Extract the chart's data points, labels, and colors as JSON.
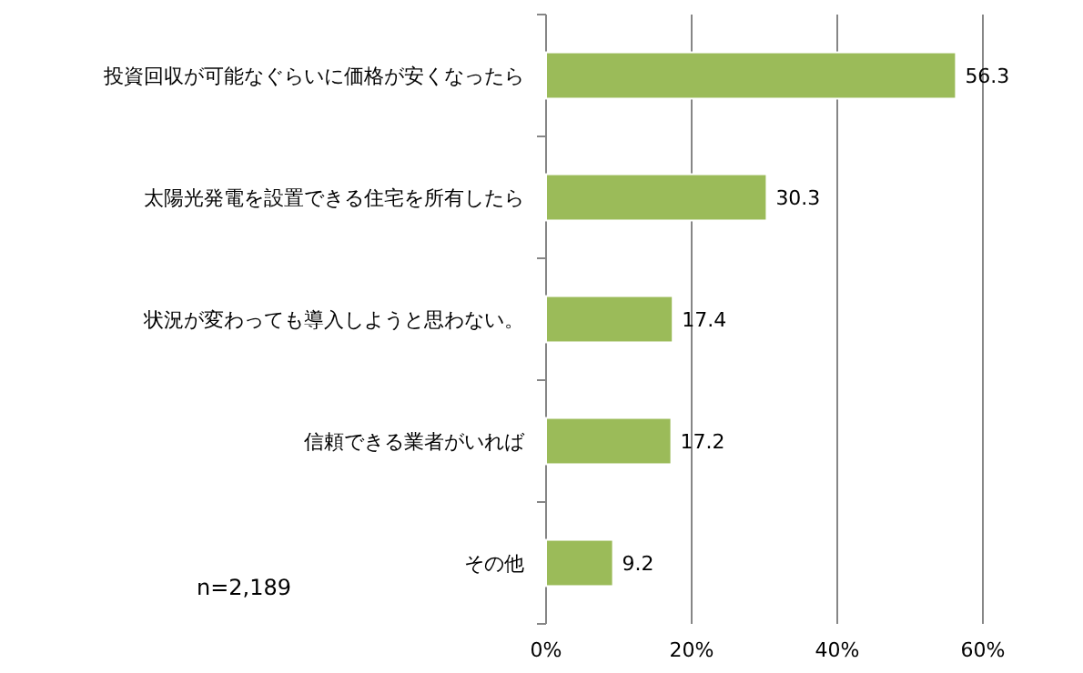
{
  "chart_data": {
    "type": "bar",
    "orientation": "horizontal",
    "categories": [
      "投資回収が可能なぐらいに価格が安くなったら",
      "太陽光発電を設置できる住宅を所有したら",
      "状況が変わっても導入しようと思わない。",
      "信頼できる業者がいれば",
      "その他"
    ],
    "values": [
      56.3,
      30.3,
      17.4,
      17.2,
      9.2
    ],
    "color": "#9bbb59",
    "xlim": [
      0,
      60
    ],
    "xticks": [
      {
        "value": 0,
        "label": "0%"
      },
      {
        "value": 20,
        "label": "20%"
      },
      {
        "value": 40,
        "label": "40%"
      },
      {
        "value": 60,
        "label": "60%"
      }
    ],
    "grid": "x",
    "data_labels": true,
    "annotations": [
      "n=2,189"
    ]
  }
}
